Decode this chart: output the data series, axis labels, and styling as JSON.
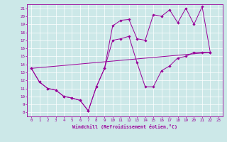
{
  "xlabel": "Windchill (Refroidissement éolien,°C)",
  "bg_color": "#cce8e8",
  "line_color": "#990099",
  "grid_color": "#ffffff",
  "xmin": 0,
  "xmax": 23,
  "ymin": 8,
  "ymax": 21,
  "line1_x": [
    0,
    1,
    2,
    3,
    4,
    5,
    6,
    7,
    8,
    9,
    10,
    11,
    12,
    13,
    14,
    15,
    16,
    17,
    18,
    19,
    20,
    21,
    22
  ],
  "line1_y": [
    13.5,
    11.8,
    11.0,
    10.8,
    10.0,
    9.8,
    9.5,
    8.2,
    11.2,
    13.5,
    18.8,
    19.5,
    19.6,
    17.2,
    17.0,
    20.2,
    20.0,
    20.8,
    19.2,
    21.0,
    19.0,
    21.2,
    15.5
  ],
  "line2_x": [
    0,
    1,
    2,
    3,
    4,
    5,
    6,
    7,
    8,
    9,
    10,
    11,
    12,
    13,
    14,
    15,
    16,
    17,
    18,
    19,
    20,
    21,
    22
  ],
  "line2_y": [
    13.5,
    11.8,
    11.0,
    10.8,
    10.0,
    9.8,
    9.5,
    8.2,
    11.2,
    13.5,
    17.0,
    17.2,
    17.5,
    14.2,
    11.2,
    11.2,
    13.2,
    13.8,
    14.8,
    15.0,
    15.5,
    15.5,
    15.5
  ],
  "line3_x": [
    0,
    22
  ],
  "line3_y": [
    13.5,
    15.5
  ],
  "yticks": [
    8,
    9,
    10,
    11,
    12,
    13,
    14,
    15,
    16,
    17,
    18,
    19,
    20,
    21
  ],
  "xticks": [
    0,
    1,
    2,
    3,
    4,
    5,
    6,
    7,
    8,
    9,
    10,
    11,
    12,
    13,
    14,
    15,
    16,
    17,
    18,
    19,
    20,
    21,
    22,
    23
  ]
}
